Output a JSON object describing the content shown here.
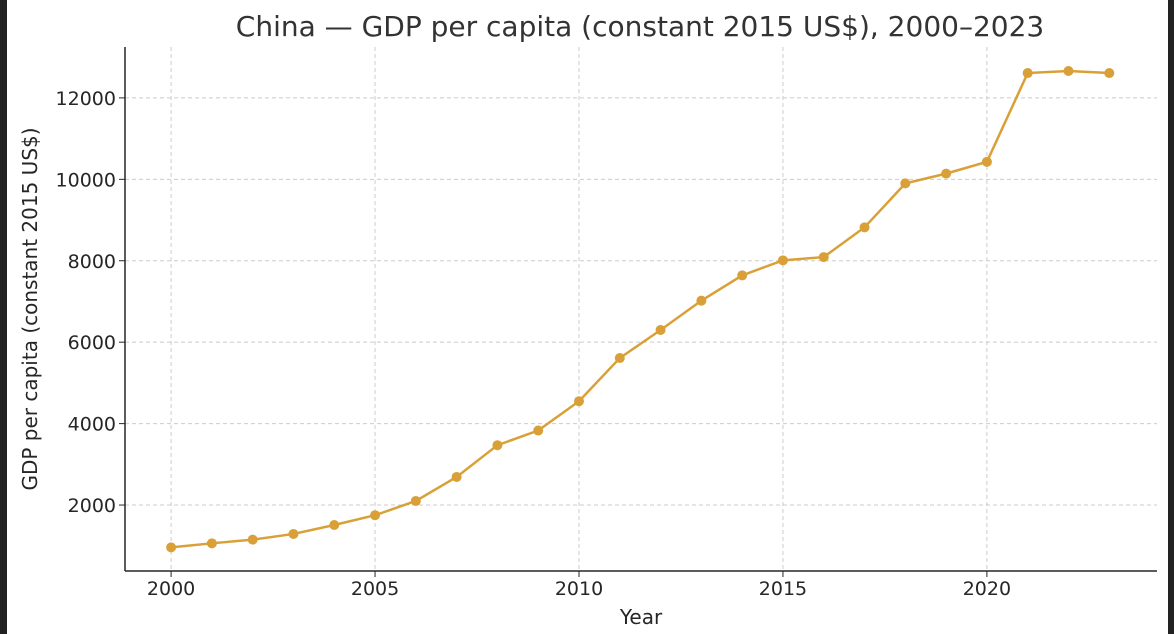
{
  "chart_data": {
    "type": "line",
    "title": "China — GDP per capita (constant 2015 US$), 2000–2023",
    "xlabel": "Year",
    "ylabel": "GDP per capita (constant 2015 US$)",
    "x": [
      2000,
      2001,
      2002,
      2003,
      2004,
      2005,
      2006,
      2007,
      2008,
      2009,
      2010,
      2011,
      2012,
      2013,
      2014,
      2015,
      2016,
      2017,
      2018,
      2019,
      2020,
      2021,
      2022,
      2023
    ],
    "series": [
      {
        "name": "China",
        "color": "#DAA038",
        "values": [
          960,
          1060,
          1150,
          1290,
          1510,
          1750,
          2100,
          2690,
          3470,
          3830,
          4550,
          5610,
          6300,
          7020,
          7640,
          8010,
          8090,
          8820,
          9900,
          10140,
          10430,
          12610,
          12660,
          12610
        ]
      }
    ],
    "xticks": [
      2000,
      2005,
      2010,
      2015,
      2020
    ],
    "yticks": [
      2000,
      4000,
      6000,
      8000,
      10000,
      12000
    ],
    "xlim": [
      1998.87,
      2024.17
    ],
    "ylim": [
      380,
      13250
    ],
    "grid": true
  }
}
